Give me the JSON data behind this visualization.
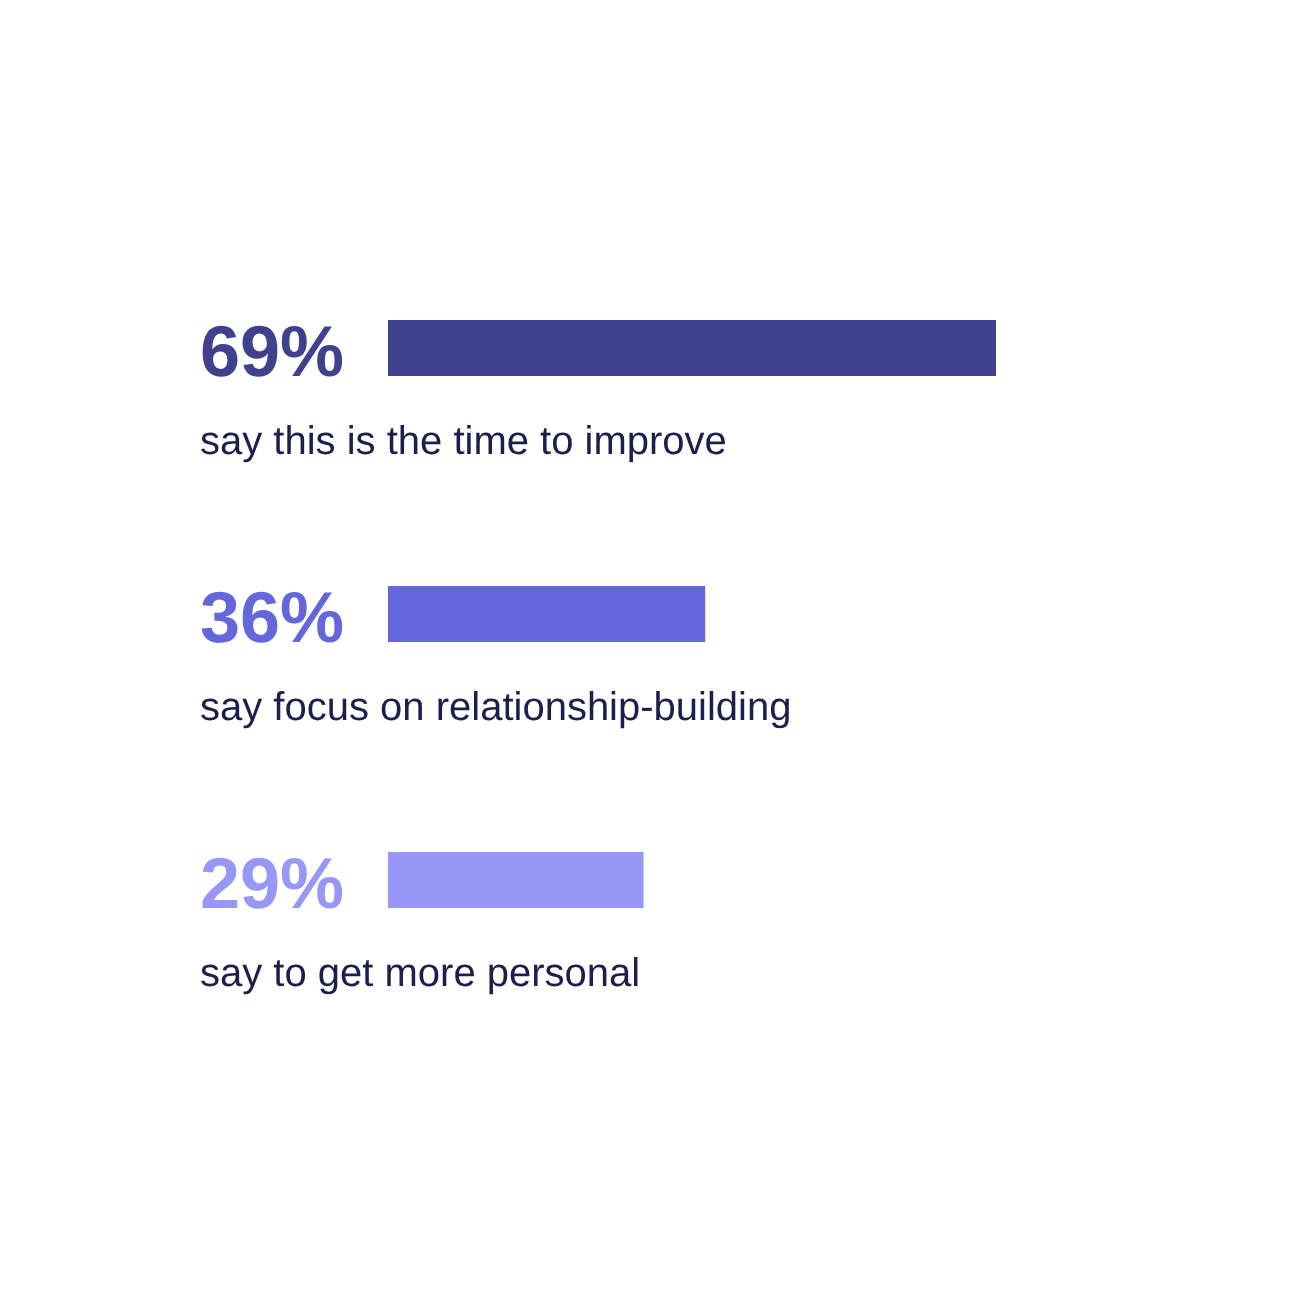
{
  "chart_data": {
    "type": "bar",
    "orientation": "horizontal",
    "categories": [
      "say this is the time to improve",
      "say focus on relationship-building",
      "say to get more personal"
    ],
    "values": [
      69,
      36,
      29
    ],
    "colors": [
      "#3f418c",
      "#6467dc",
      "#9797f7"
    ],
    "value_labels": [
      "69%",
      "36%",
      "29%"
    ]
  }
}
